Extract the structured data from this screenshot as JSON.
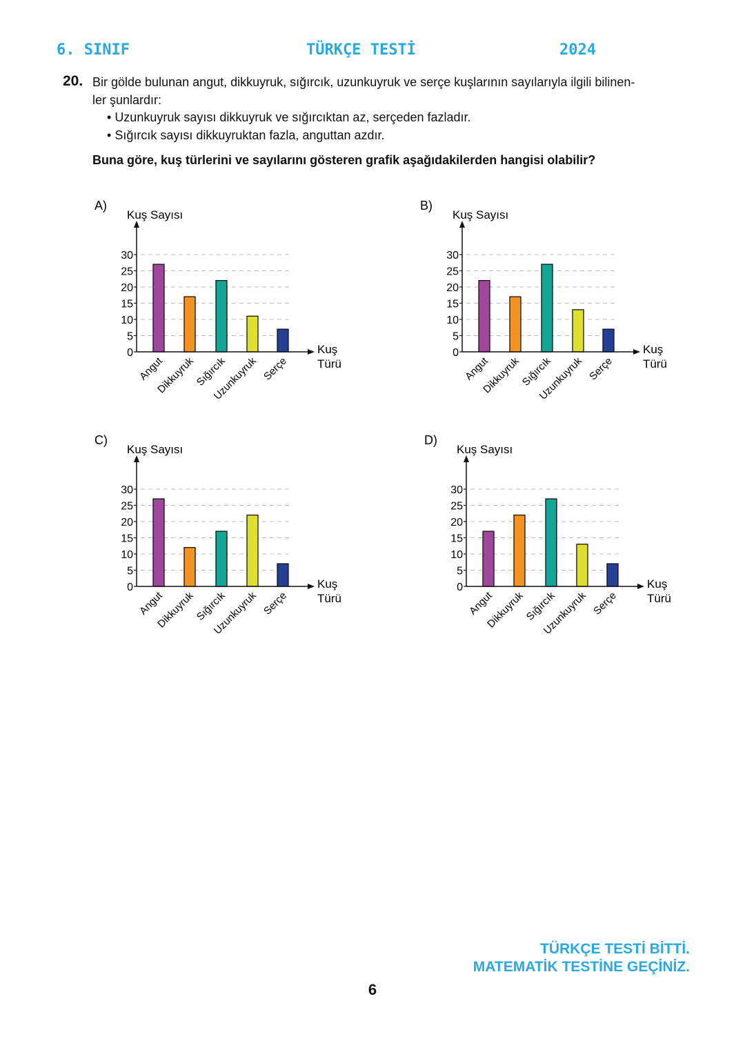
{
  "header": {
    "grade": "6. SINIF",
    "title": "TÜRKÇE TESTİ",
    "year": "2024"
  },
  "question": {
    "number": "20.",
    "intro_line1": "Bir gölde bulunan angut, dikkuyruk, sığırcık, uzunkuyruk ve serçe kuşlarının sayılarıyla ilgili bilinen-",
    "intro_line2": "ler şunlardır:",
    "bullets": [
      "Uzunkuyruk sayısı dikkuyruk ve sığırcıktan az, serçeden fazladır.",
      "Sığırcık sayısı dikkuyruktan fazla, anguttan azdır."
    ],
    "prompt": "Buna göre, kuş türlerini ve sayılarını gösteren grafik aşağıdakilerden hangisi olabilir?"
  },
  "chart_data": [
    {
      "option": "A)",
      "type": "bar",
      "ylabel": "Kuş Sayısı",
      "xlabel_line1": "Kuş",
      "xlabel_line2": "Türü",
      "categories": [
        "Angut",
        "Dikkuyruk",
        "Sığırcık",
        "Uzunkuyruk",
        "Serçe"
      ],
      "values": [
        27,
        17,
        22,
        11,
        7
      ],
      "yticks": [
        "0",
        "5",
        "10",
        "15",
        "20",
        "25",
        "30"
      ],
      "ylim": [
        0,
        30
      ],
      "grid": "dashed horizontal",
      "colors": [
        "#a0469b",
        "#f39322",
        "#13a596",
        "#dfe12e",
        "#233f96"
      ]
    },
    {
      "option": "B)",
      "type": "bar",
      "ylabel": "Kuş Sayısı",
      "xlabel_line1": "Kuş",
      "xlabel_line2": "Türü",
      "categories": [
        "Angut",
        "Dikkuyruk",
        "Sığırcık",
        "Uzunkuyruk",
        "Serçe"
      ],
      "values": [
        22,
        17,
        27,
        13,
        7
      ],
      "yticks": [
        "0",
        "5",
        "10",
        "15",
        "20",
        "25",
        "30"
      ],
      "ylim": [
        0,
        30
      ],
      "grid": "dashed horizontal",
      "colors": [
        "#a0469b",
        "#f39322",
        "#13a596",
        "#dfe12e",
        "#233f96"
      ]
    },
    {
      "option": "C)",
      "type": "bar",
      "ylabel": "Kuş Sayısı",
      "xlabel_line1": "Kuş",
      "xlabel_line2": "Türü",
      "categories": [
        "Angut",
        "Dikkuyruk",
        "Sığırcık",
        "Uzunkuyruk",
        "Serçe"
      ],
      "values": [
        27,
        12,
        17,
        22,
        7
      ],
      "yticks": [
        "0",
        "5",
        "10",
        "15",
        "20",
        "25",
        "30"
      ],
      "ylim": [
        0,
        30
      ],
      "grid": "dashed horizontal",
      "colors": [
        "#a0469b",
        "#f39322",
        "#13a596",
        "#dfe12e",
        "#233f96"
      ]
    },
    {
      "option": "D)",
      "type": "bar",
      "ylabel": "Kuş Sayısı",
      "xlabel_line1": "Kuş",
      "xlabel_line2": "Türü",
      "categories": [
        "Angut",
        "Dikkuyruk",
        "Sığırcık",
        "Uzunkuyruk",
        "Serçe"
      ],
      "values": [
        17,
        22,
        27,
        13,
        7
      ],
      "yticks": [
        "0",
        "5",
        "10",
        "15",
        "20",
        "25",
        "30"
      ],
      "ylim": [
        0,
        30
      ],
      "grid": "dashed horizontal",
      "colors": [
        "#a0469b",
        "#f39322",
        "#13a596",
        "#dfe12e",
        "#233f96"
      ]
    }
  ],
  "footer": {
    "line1": "TÜRKÇE TESTİ BİTTİ.",
    "line2": "MATEMATİK TESTİNE GEÇİNİZ."
  },
  "page_number": "6",
  "accent_color": "#29a9e0"
}
